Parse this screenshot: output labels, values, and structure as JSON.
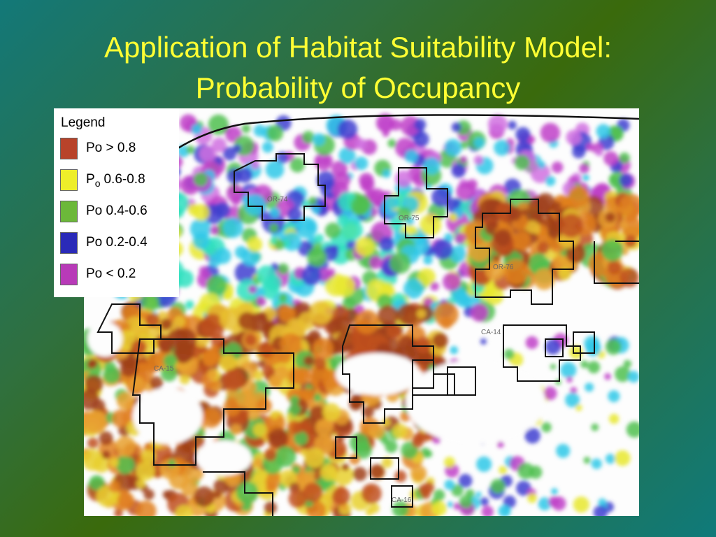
{
  "title": {
    "line1": "Application of Habitat Suitability Model:",
    "line2": "Probability of Occupancy"
  },
  "legend": {
    "heading": "Legend",
    "items": [
      {
        "color": "#b8432a",
        "label": "Po > 0.8"
      },
      {
        "color": "#eeee2a",
        "label": "P",
        "subscript": "o",
        "suffix": "0.6-0.8"
      },
      {
        "color": "#6cb83a",
        "label": "Po 0.4-0.6"
      },
      {
        "color": "#2a2ab8",
        "label": "Po 0.2-0.4"
      },
      {
        "color": "#b83ab8",
        "label": "Po < 0.2"
      }
    ]
  },
  "map": {
    "labels": [
      "OR-74",
      "OR-75",
      "OR-76",
      "CA-14",
      "CA-15",
      "CA-16"
    ]
  }
}
